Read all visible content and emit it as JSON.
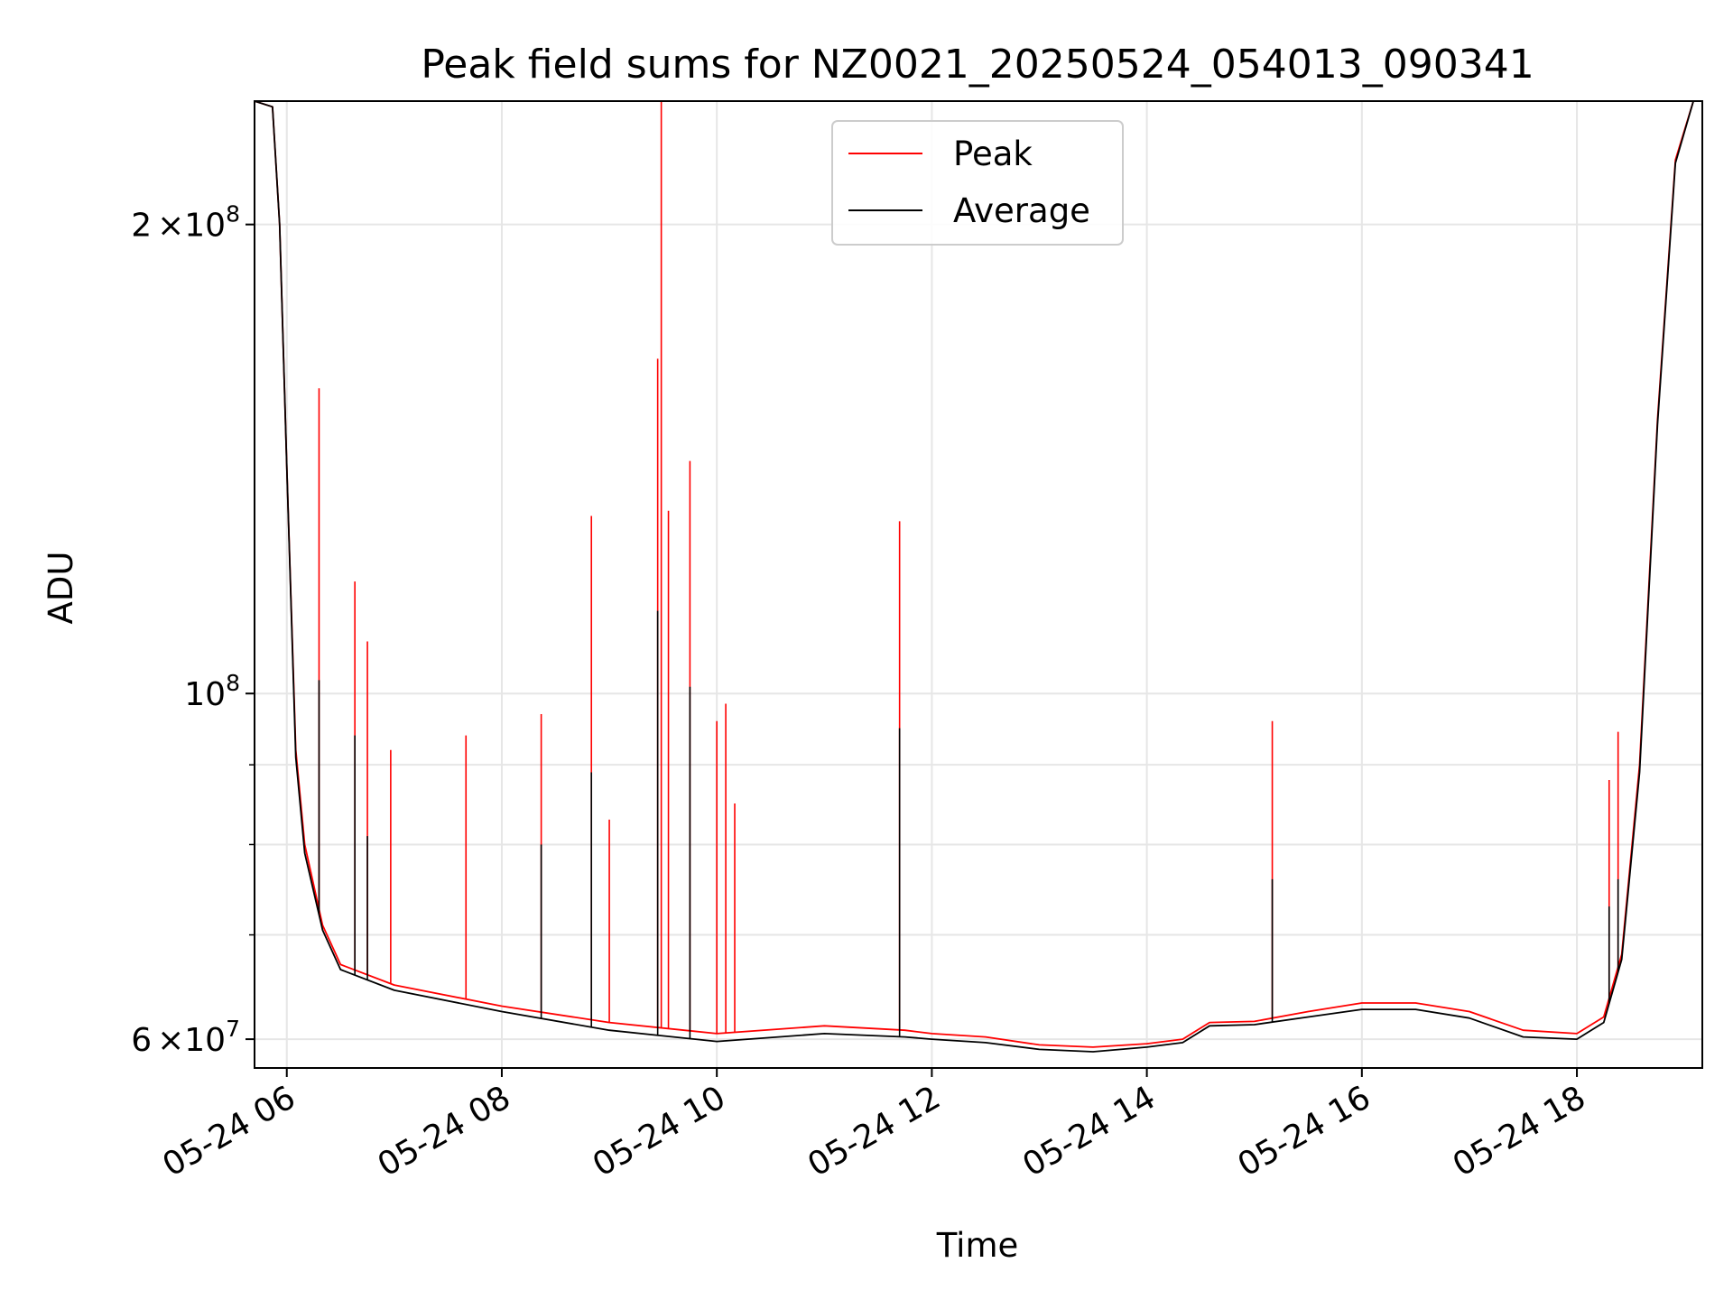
{
  "chart_data": {
    "type": "line",
    "title": "Peak field sums for NZ0021_20250524_054013_090341",
    "xlabel": "Time",
    "ylabel": "ADU",
    "yscale": "log",
    "grid": true,
    "legend": {
      "placement": "top-center"
    },
    "xlim": [
      "2025-05-24 05:42",
      "2025-05-24 19:10"
    ],
    "ylim": [
      57500000,
      240000000
    ],
    "x_ticks": [
      {
        "value": "2025-05-24 06:00",
        "label": "05-24 06"
      },
      {
        "value": "2025-05-24 08:00",
        "label": "05-24 08"
      },
      {
        "value": "2025-05-24 10:00",
        "label": "05-24 10"
      },
      {
        "value": "2025-05-24 12:00",
        "label": "05-24 12"
      },
      {
        "value": "2025-05-24 14:00",
        "label": "05-24 14"
      },
      {
        "value": "2025-05-24 16:00",
        "label": "05-24 16"
      },
      {
        "value": "2025-05-24 18:00",
        "label": "05-24 18"
      }
    ],
    "y_ticks_major": [
      {
        "value": 60000000,
        "label_mant": "6",
        "label_times": "×",
        "label_base": "10",
        "label_exp": "7"
      },
      {
        "value": 100000000,
        "label_mant": "",
        "label_times": "",
        "label_base": "10",
        "label_exp": "8"
      },
      {
        "value": 200000000,
        "label_mant": "2",
        "label_times": "×",
        "label_base": "10",
        "label_exp": "8"
      }
    ],
    "y_ticks_minor": [
      70000000,
      80000000,
      90000000
    ],
    "series": [
      {
        "name": "Peak",
        "color": "#ff0000",
        "points": [
          [
            "2025-05-24 05:42",
            240000000
          ],
          [
            "2025-05-24 05:52",
            238000000
          ],
          [
            "2025-05-24 05:56",
            200000000
          ],
          [
            "2025-05-24 06:00",
            140000000
          ],
          [
            "2025-05-24 06:05",
            92000000
          ],
          [
            "2025-05-24 06:10",
            80000000
          ],
          [
            "2025-05-24 06:20",
            71000000
          ],
          [
            "2025-05-24 06:30",
            67000000
          ],
          [
            "2025-05-24 07:00",
            65000000
          ],
          [
            "2025-05-24 08:00",
            63000000
          ],
          [
            "2025-05-24 09:00",
            61500000
          ],
          [
            "2025-05-24 10:00",
            60500000
          ],
          [
            "2025-05-24 11:00",
            61200000
          ],
          [
            "2025-05-24 11:45",
            60800000
          ],
          [
            "2025-05-24 12:00",
            60500000
          ],
          [
            "2025-05-24 12:30",
            60200000
          ],
          [
            "2025-05-24 13:00",
            59500000
          ],
          [
            "2025-05-24 13:30",
            59300000
          ],
          [
            "2025-05-24 14:00",
            59600000
          ],
          [
            "2025-05-24 14:20",
            60000000
          ],
          [
            "2025-05-24 14:35",
            61500000
          ],
          [
            "2025-05-24 15:00",
            61600000
          ],
          [
            "2025-05-24 15:30",
            62500000
          ],
          [
            "2025-05-24 16:00",
            63300000
          ],
          [
            "2025-05-24 16:30",
            63300000
          ],
          [
            "2025-05-24 17:00",
            62500000
          ],
          [
            "2025-05-24 17:30",
            60800000
          ],
          [
            "2025-05-24 18:00",
            60500000
          ],
          [
            "2025-05-24 18:15",
            62000000
          ],
          [
            "2025-05-24 18:25",
            68000000
          ],
          [
            "2025-05-24 18:35",
            90000000
          ],
          [
            "2025-05-24 18:45",
            150000000
          ],
          [
            "2025-05-24 18:55",
            220000000
          ],
          [
            "2025-05-24 19:05",
            240000000
          ],
          [
            "2025-05-24 19:10",
            240000000
          ]
        ],
        "spikes": [
          [
            "2025-05-24 06:05",
            92500000
          ],
          [
            "2025-05-24 06:18",
            157000000
          ],
          [
            "2025-05-24 06:38",
            118000000
          ],
          [
            "2025-05-24 06:45",
            108000000
          ],
          [
            "2025-05-24 06:58",
            92000000
          ],
          [
            "2025-05-24 07:40",
            94000000
          ],
          [
            "2025-05-24 08:22",
            97000000
          ],
          [
            "2025-05-24 08:50",
            130000000
          ],
          [
            "2025-05-24 09:00",
            83000000
          ],
          [
            "2025-05-24 09:27",
            164000000
          ],
          [
            "2025-05-24 09:29",
            240000000
          ],
          [
            "2025-05-24 09:33",
            131000000
          ],
          [
            "2025-05-24 09:45",
            141000000
          ],
          [
            "2025-05-24 10:00",
            96000000
          ],
          [
            "2025-05-24 10:05",
            98500000
          ],
          [
            "2025-05-24 10:10",
            85000000
          ],
          [
            "2025-05-24 11:42",
            129000000
          ],
          [
            "2025-05-24 15:10",
            96000000
          ],
          [
            "2025-05-24 18:18",
            88000000
          ],
          [
            "2025-05-24 18:23",
            94500000
          ]
        ]
      },
      {
        "name": "Average",
        "color": "#000000",
        "points": [
          [
            "2025-05-24 05:42",
            240000000
          ],
          [
            "2025-05-24 05:52",
            238000000
          ],
          [
            "2025-05-24 05:56",
            200000000
          ],
          [
            "2025-05-24 06:00",
            140000000
          ],
          [
            "2025-05-24 06:05",
            91000000
          ],
          [
            "2025-05-24 06:10",
            79000000
          ],
          [
            "2025-05-24 06:20",
            70500000
          ],
          [
            "2025-05-24 06:30",
            66500000
          ],
          [
            "2025-05-24 07:00",
            64500000
          ],
          [
            "2025-05-24 08:00",
            62500000
          ],
          [
            "2025-05-24 09:00",
            60800000
          ],
          [
            "2025-05-24 10:00",
            59800000
          ],
          [
            "2025-05-24 11:00",
            60500000
          ],
          [
            "2025-05-24 11:45",
            60200000
          ],
          [
            "2025-05-24 12:00",
            60000000
          ],
          [
            "2025-05-24 12:30",
            59700000
          ],
          [
            "2025-05-24 13:00",
            59100000
          ],
          [
            "2025-05-24 13:30",
            58900000
          ],
          [
            "2025-05-24 14:00",
            59300000
          ],
          [
            "2025-05-24 14:20",
            59700000
          ],
          [
            "2025-05-24 14:35",
            61200000
          ],
          [
            "2025-05-24 15:00",
            61300000
          ],
          [
            "2025-05-24 15:30",
            62000000
          ],
          [
            "2025-05-24 16:00",
            62700000
          ],
          [
            "2025-05-24 16:30",
            62700000
          ],
          [
            "2025-05-24 17:00",
            61900000
          ],
          [
            "2025-05-24 17:30",
            60200000
          ],
          [
            "2025-05-24 18:00",
            60000000
          ],
          [
            "2025-05-24 18:15",
            61500000
          ],
          [
            "2025-05-24 18:25",
            67500000
          ],
          [
            "2025-05-24 18:35",
            89000000
          ],
          [
            "2025-05-24 18:45",
            149000000
          ],
          [
            "2025-05-24 18:55",
            219000000
          ],
          [
            "2025-05-24 19:05",
            240000000
          ],
          [
            "2025-05-24 19:10",
            240000000
          ]
        ],
        "spikes": [
          [
            "2025-05-24 06:18",
            102000000
          ],
          [
            "2025-05-24 06:38",
            94000000
          ],
          [
            "2025-05-24 06:45",
            81000000
          ],
          [
            "2025-05-24 08:22",
            80000000
          ],
          [
            "2025-05-24 08:50",
            89000000
          ],
          [
            "2025-05-24 09:27",
            113000000
          ],
          [
            "2025-05-24 09:45",
            101000000
          ],
          [
            "2025-05-24 11:42",
            95000000
          ],
          [
            "2025-05-24 15:10",
            76000000
          ],
          [
            "2025-05-24 18:18",
            73000000
          ],
          [
            "2025-05-24 18:23",
            76000000
          ]
        ]
      }
    ]
  }
}
